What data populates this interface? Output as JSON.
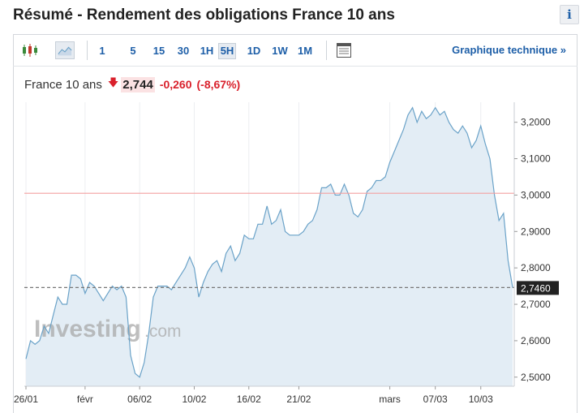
{
  "page": {
    "title": "Résumé - Rendement des obligations France 10 ans",
    "info_label": "i"
  },
  "toolbar": {
    "periods": [
      "1",
      "5",
      "15",
      "30",
      "1H",
      "5H",
      "1D",
      "1W",
      "1M"
    ],
    "active_period": "5H",
    "tech_link": "Graphique technique",
    "tech_link_arrow": "»",
    "icons": [
      "candlestick-icon",
      "area-chart-icon",
      "table-icon"
    ]
  },
  "quote": {
    "name": "France 10 ans",
    "direction": "down",
    "price": "2,744",
    "change": "-0,260",
    "change_pct": "(-8,67%)",
    "colors": {
      "down": "#d9212c",
      "price_bg": "#fbe2e3"
    }
  },
  "chart_data": {
    "type": "area",
    "watermark": {
      "brand": "Investing",
      "suffix": ".com"
    },
    "x_ticks": [
      "26/01",
      "févr",
      "06/02",
      "10/02",
      "16/02",
      "21/02",
      "mars",
      "07/03",
      "10/03"
    ],
    "x_tick_index": [
      0,
      13,
      25,
      37,
      49,
      60,
      80,
      90,
      100
    ],
    "y_ticks": [
      "3,2000",
      "3,1000",
      "3,0000",
      "2,9000",
      "2,8000",
      "2,7000",
      "2,6000",
      "2,5000"
    ],
    "y_tick_values": [
      3.2,
      3.1,
      3.0,
      2.9,
      2.8,
      2.7,
      2.6,
      2.5
    ],
    "ylim": [
      2.475,
      3.255
    ],
    "reference_line": 3.005,
    "last_value_line": 2.746,
    "last_value_label": "2,7460",
    "colors": {
      "line": "#6aa2c8",
      "fill": "#e3edf5",
      "reference": "#f3a0a0",
      "last": "#777777"
    },
    "series": [
      {
        "values": [
          2.55,
          2.6,
          2.59,
          2.6,
          2.64,
          2.62,
          2.67,
          2.72,
          2.7,
          2.7,
          2.78,
          2.78,
          2.77,
          2.73,
          2.76,
          2.75,
          2.73,
          2.71,
          2.73,
          2.75,
          2.74,
          2.75,
          2.72,
          2.56,
          2.51,
          2.5,
          2.54,
          2.62,
          2.72,
          2.75,
          2.75,
          2.75,
          2.74,
          2.76,
          2.78,
          2.8,
          2.83,
          2.8,
          2.72,
          2.76,
          2.79,
          2.81,
          2.82,
          2.79,
          2.84,
          2.86,
          2.82,
          2.84,
          2.89,
          2.88,
          2.88,
          2.92,
          2.92,
          2.97,
          2.92,
          2.93,
          2.96,
          2.9,
          2.89,
          2.89,
          2.89,
          2.9,
          2.92,
          2.93,
          2.96,
          3.02,
          3.02,
          3.03,
          3.0,
          3.0,
          3.03,
          3.0,
          2.95,
          2.94,
          2.96,
          3.01,
          3.02,
          3.04,
          3.04,
          3.05,
          3.09,
          3.12,
          3.15,
          3.18,
          3.22,
          3.24,
          3.2,
          3.23,
          3.21,
          3.22,
          3.24,
          3.22,
          3.23,
          3.2,
          3.18,
          3.17,
          3.19,
          3.17,
          3.13,
          3.15,
          3.19,
          3.14,
          3.1,
          3.0,
          2.93,
          2.95,
          2.82,
          2.746
        ]
      }
    ]
  }
}
